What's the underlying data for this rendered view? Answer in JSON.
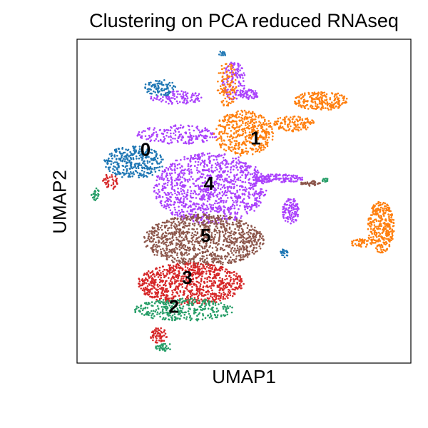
{
  "chart_data": {
    "type": "scatter",
    "title": "Clustering on PCA reduced RNAseq",
    "xlabel": "UMAP1",
    "ylabel": "UMAP2",
    "xlim": [
      0,
      100
    ],
    "ylim": [
      0,
      100
    ],
    "grid": false,
    "legend": "none",
    "ticks": "none",
    "cluster_colors": {
      "0": "#1f77b4",
      "1": "#ff7f0e",
      "2": "#279e68",
      "3": "#d62728",
      "4": "#aa40fc",
      "5": "#8c564b"
    },
    "cluster_labels": [
      {
        "text": "0",
        "x": 20.5,
        "y": 65.5
      },
      {
        "text": "1",
        "x": 53.5,
        "y": 69.0
      },
      {
        "text": "4",
        "x": 39.5,
        "y": 55.0
      },
      {
        "text": "5",
        "x": 38.5,
        "y": 39.0
      },
      {
        "text": "3",
        "x": 33.0,
        "y": 26.0
      },
      {
        "text": "2",
        "x": 29.0,
        "y": 17.0
      }
    ],
    "regions": [
      {
        "cluster": "4",
        "points": 1100,
        "shape": "ellipse",
        "cx": 40,
        "cy": 54,
        "rx": 17,
        "ry": 11
      },
      {
        "cluster": "4",
        "points": 180,
        "shape": "ellipse",
        "cx": 30,
        "cy": 70.5,
        "rx": 12,
        "ry": 3
      },
      {
        "cluster": "4",
        "points": 150,
        "shape": "ellipse",
        "cx": 60,
        "cy": 57,
        "rx": 8,
        "ry": 1.3
      },
      {
        "cluster": "4",
        "points": 110,
        "shape": "ellipse",
        "cx": 64,
        "cy": 47,
        "rx": 2.5,
        "ry": 4
      },
      {
        "cluster": "4",
        "points": 130,
        "shape": "ellipse",
        "cx": 47,
        "cy": 87,
        "rx": 3.5,
        "ry": 6
      },
      {
        "cluster": "4",
        "points": 110,
        "shape": "ellipse",
        "cx": 30,
        "cy": 82,
        "rx": 8,
        "ry": 2
      },
      {
        "cluster": "4",
        "points": 60,
        "shape": "ellipse",
        "cx": 51.5,
        "cy": 83,
        "rx": 3,
        "ry": 1.5
      },
      {
        "cluster": "1",
        "points": 420,
        "shape": "ellipse",
        "cx": 50,
        "cy": 71,
        "rx": 9,
        "ry": 7
      },
      {
        "cluster": "1",
        "points": 220,
        "shape": "ellipse",
        "cx": 73,
        "cy": 81,
        "rx": 8,
        "ry": 3
      },
      {
        "cluster": "1",
        "points": 120,
        "shape": "ellipse",
        "cx": 65,
        "cy": 74,
        "rx": 6,
        "ry": 2.5
      },
      {
        "cluster": "1",
        "points": 110,
        "shape": "ellipse",
        "cx": 45,
        "cy": 86,
        "rx": 3,
        "ry": 7
      },
      {
        "cluster": "1",
        "points": 320,
        "shape": "ellipse",
        "cx": 91,
        "cy": 42,
        "rx": 4,
        "ry": 8
      },
      {
        "cluster": "1",
        "points": 40,
        "shape": "ellipse",
        "cx": 85,
        "cy": 37,
        "rx": 3,
        "ry": 1.3
      },
      {
        "cluster": "0",
        "points": 330,
        "shape": "ellipse",
        "cx": 17,
        "cy": 62,
        "rx": 9,
        "ry": 5
      },
      {
        "cluster": "0",
        "points": 90,
        "shape": "ellipse",
        "cx": 25,
        "cy": 85,
        "rx": 5,
        "ry": 2.5
      },
      {
        "cluster": "0",
        "points": 25,
        "shape": "ellipse",
        "cx": 62,
        "cy": 34,
        "rx": 1.2,
        "ry": 1.5
      },
      {
        "cluster": "0",
        "points": 15,
        "shape": "ellipse",
        "cx": 43.5,
        "cy": 95.5,
        "rx": 1.2,
        "ry": 0.8
      },
      {
        "cluster": "5",
        "points": 1050,
        "shape": "ellipse",
        "cx": 38,
        "cy": 38,
        "rx": 18,
        "ry": 8
      },
      {
        "cluster": "5",
        "points": 40,
        "shape": "ellipse",
        "cx": 70,
        "cy": 55.5,
        "rx": 3,
        "ry": 0.8
      },
      {
        "cluster": "3",
        "points": 850,
        "shape": "ellipse",
        "cx": 34,
        "cy": 24.5,
        "rx": 16,
        "ry": 6.5
      },
      {
        "cluster": "3",
        "points": 60,
        "shape": "ellipse",
        "cx": 24.5,
        "cy": 8.5,
        "rx": 2.5,
        "ry": 2.5
      },
      {
        "cluster": "3",
        "points": 40,
        "shape": "ellipse",
        "cx": 10,
        "cy": 56,
        "rx": 2.5,
        "ry": 2.5
      },
      {
        "cluster": "2",
        "points": 330,
        "shape": "ellipse",
        "cx": 32,
        "cy": 16.5,
        "rx": 15,
        "ry": 3.5
      },
      {
        "cluster": "2",
        "points": 35,
        "shape": "ellipse",
        "cx": 26,
        "cy": 5,
        "rx": 2.5,
        "ry": 1.3
      },
      {
        "cluster": "2",
        "points": 25,
        "shape": "ellipse",
        "cx": 5.5,
        "cy": 52,
        "rx": 1.2,
        "ry": 2
      },
      {
        "cluster": "2",
        "points": 12,
        "shape": "ellipse",
        "cx": 74.5,
        "cy": 56.5,
        "rx": 1.2,
        "ry": 0.6
      }
    ]
  }
}
